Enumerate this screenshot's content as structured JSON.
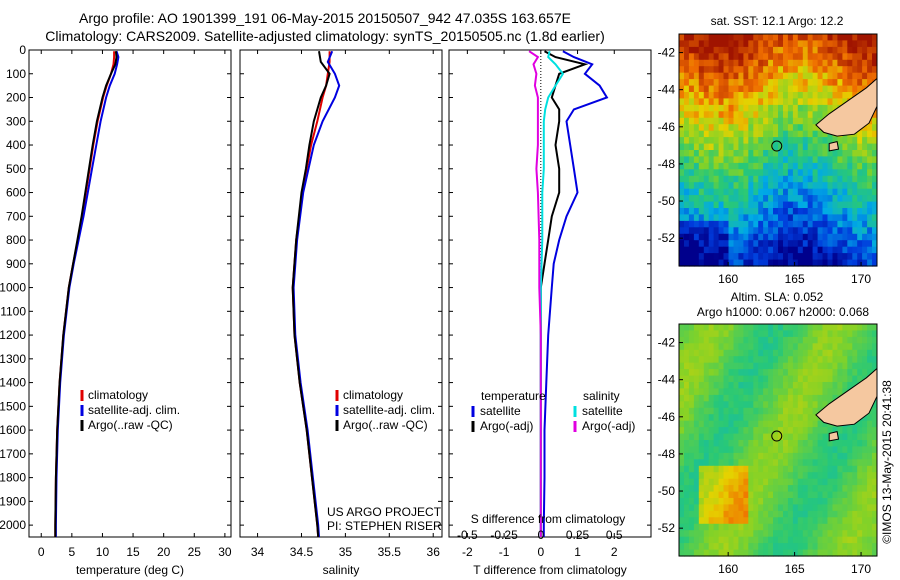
{
  "title_line1": "Argo profile: AO 1901399_191 06-May-2015 20150507_942 47.035S 163.657E",
  "title_line2": "Climatology: CARS2009. Satellite-adjusted climatology: synTS_20150505.nc (1.8d earlier)",
  "colors": {
    "climatology": "#e00000",
    "satellite": "#0000e0",
    "argo": "#000000",
    "salinity_sat": "#00e0e0",
    "salinity_argo": "#e000e0"
  },
  "chart_data": [
    {
      "type": "line",
      "panel": "temperature",
      "xlabel": "temperature (deg C)",
      "ylabel": "",
      "xlim": [
        -2,
        31
      ],
      "ylim": [
        2050,
        0
      ],
      "xticks": [
        0,
        5,
        10,
        15,
        20,
        25,
        30
      ],
      "yticks": [
        0,
        100,
        200,
        300,
        400,
        500,
        600,
        700,
        800,
        900,
        1000,
        1100,
        1200,
        1300,
        1400,
        1500,
        1600,
        1700,
        1800,
        1900,
        2000
      ],
      "legend": [
        "climatology",
        "satellite-adj. clim.",
        "Argo(..raw -QC)"
      ],
      "series": [
        {
          "name": "climatology",
          "color_key": "climatology",
          "depth": [
            5,
            30,
            60,
            100,
            150,
            200,
            300,
            400,
            500,
            600,
            700,
            800,
            900,
            1000,
            1200,
            1400,
            1600,
            1800,
            2000,
            2050
          ],
          "values": [
            11.9,
            11.9,
            11.8,
            11.4,
            10.7,
            10.1,
            9.2,
            8.5,
            7.9,
            7.3,
            6.7,
            6.0,
            5.2,
            4.5,
            3.6,
            3.0,
            2.6,
            2.4,
            2.3,
            2.3
          ]
        },
        {
          "name": "satellite-adj. clim.",
          "color_key": "satellite",
          "depth": [
            5,
            30,
            60,
            100,
            150,
            200,
            300,
            400,
            500,
            600,
            700,
            800,
            900,
            1000,
            1200,
            1400,
            1600,
            1800,
            2000,
            2050
          ],
          "values": [
            12.3,
            12.6,
            12.4,
            12.0,
            11.2,
            10.6,
            9.7,
            9.0,
            8.3,
            7.6,
            6.9,
            6.1,
            5.3,
            4.6,
            3.7,
            3.1,
            2.7,
            2.5,
            2.4,
            2.4
          ]
        },
        {
          "name": "Argo(..raw -QC)",
          "color_key": "argo",
          "depth": [
            5,
            30,
            60,
            100,
            150,
            200,
            300,
            400,
            500,
            600,
            700,
            800,
            900,
            1000,
            1200,
            1400,
            1600,
            1800,
            2000,
            2050
          ],
          "values": [
            12.2,
            12.3,
            12.1,
            11.4,
            10.6,
            10.0,
            9.1,
            8.4,
            7.8,
            7.2,
            6.6,
            5.9,
            5.2,
            4.5,
            3.6,
            3.0,
            2.6,
            2.4,
            2.3,
            2.3
          ]
        }
      ]
    },
    {
      "type": "line",
      "panel": "salinity",
      "xlabel": "salinity",
      "ylabel": "",
      "xlim": [
        33.8,
        36.1
      ],
      "ylim": [
        2050,
        0
      ],
      "xticks": [
        34,
        34.5,
        35,
        35.5,
        36
      ],
      "legend": [
        "climatology",
        "satellite-adj. clim.",
        "Argo(..raw -QC)"
      ],
      "annotation": [
        "US ARGO PROJECT",
        "PI: STEPHEN RISER"
      ],
      "series": [
        {
          "name": "climatology",
          "color_key": "climatology",
          "depth": [
            5,
            50,
            100,
            150,
            200,
            300,
            400,
            500,
            600,
            800,
            1000,
            1200,
            1400,
            1600,
            1800,
            2000,
            2050
          ],
          "values": [
            34.82,
            34.82,
            34.8,
            34.78,
            34.74,
            34.68,
            34.61,
            34.56,
            34.51,
            34.44,
            34.4,
            34.42,
            34.48,
            34.56,
            34.62,
            34.68,
            34.69
          ]
        },
        {
          "name": "satellite-adj. clim.",
          "color_key": "satellite",
          "depth": [
            5,
            50,
            100,
            150,
            200,
            300,
            400,
            500,
            600,
            800,
            1000,
            1200,
            1400,
            1600,
            1800,
            2000,
            2050
          ],
          "values": [
            34.85,
            34.8,
            34.88,
            34.93,
            34.88,
            34.74,
            34.64,
            34.58,
            34.52,
            34.45,
            34.41,
            34.43,
            34.49,
            34.57,
            34.63,
            34.69,
            34.7
          ]
        },
        {
          "name": "Argo(..raw -QC)",
          "color_key": "argo",
          "depth": [
            5,
            50,
            100,
            150,
            200,
            300,
            400,
            500,
            600,
            800,
            1000,
            1200,
            1400,
            1600,
            1800,
            2000,
            2050
          ],
          "values": [
            34.7,
            34.72,
            34.82,
            34.78,
            34.72,
            34.64,
            34.59,
            34.55,
            34.5,
            34.44,
            34.4,
            34.42,
            34.48,
            34.56,
            34.62,
            34.68,
            34.69
          ]
        }
      ]
    },
    {
      "type": "line",
      "panel": "difference",
      "xlabel": "T difference from climatology",
      "xlabel2": "S difference from climatology",
      "xlim": [
        -2.5,
        3.0
      ],
      "ylim": [
        2050,
        0
      ],
      "xticks": [
        -2,
        -1,
        0,
        1,
        2
      ],
      "xticks_s": [
        -0.5,
        -0.25,
        0,
        0.25,
        0.5
      ],
      "legend_left_title": "temperature",
      "legend_right_title": "salinity",
      "legend_left": [
        "satellite",
        "Argo(-adj)"
      ],
      "legend_right": [
        "satellite",
        "Argo(-adj)"
      ],
      "series": [
        {
          "name": "T satellite",
          "color_key": "satellite",
          "depth": [
            5,
            30,
            60,
            100,
            150,
            200,
            250,
            300,
            400,
            500,
            600,
            700,
            800,
            900,
            1000,
            1200,
            1400,
            1600,
            1800,
            2000,
            2050
          ],
          "values": [
            0.6,
            0.9,
            1.4,
            1.2,
            1.6,
            1.8,
            0.9,
            0.7,
            0.8,
            0.9,
            1.0,
            0.7,
            0.5,
            0.35,
            0.3,
            0.2,
            0.15,
            0.1,
            0.1,
            0.08,
            0.08
          ]
        },
        {
          "name": "T Argo(-adj)",
          "color_key": "argo",
          "depth": [
            5,
            30,
            60,
            100,
            150,
            200,
            250,
            300,
            400,
            500,
            600,
            700,
            800,
            900,
            1000,
            1200,
            1400,
            1600,
            1800,
            2000,
            2050
          ],
          "values": [
            0.1,
            0.4,
            1.2,
            0.5,
            0.4,
            0.3,
            0.5,
            0.5,
            0.4,
            0.5,
            0.5,
            0.3,
            0.2,
            0.1,
            0.0,
            0.0,
            0.0,
            0.0,
            0.0,
            0.0,
            0.0
          ]
        },
        {
          "name": "S satellite",
          "color_key": "salinity_sat",
          "depth": [
            5,
            30,
            60,
            100,
            150,
            200,
            250,
            300,
            400,
            500,
            600,
            800,
            1000,
            1200,
            1400,
            1600,
            1800,
            2000,
            2050
          ],
          "values": [
            0.06,
            0.05,
            0.1,
            0.15,
            0.1,
            0.05,
            0.03,
            0.02,
            0.02,
            0.02,
            0.01,
            0.01,
            0.0,
            0.0,
            0.0,
            0.0,
            0.0,
            0.0,
            0.0
          ]
        },
        {
          "name": "S Argo(-adj)",
          "color_key": "salinity_argo",
          "depth": [
            5,
            30,
            60,
            100,
            150,
            200,
            250,
            300,
            400,
            500,
            600,
            800,
            1000,
            1200,
            1400,
            1600,
            1800,
            2000,
            2050
          ],
          "values": [
            -0.08,
            -0.02,
            -0.05,
            -0.03,
            -0.04,
            -0.02,
            -0.02,
            -0.02,
            -0.02,
            -0.03,
            -0.02,
            -0.01,
            -0.01,
            0.0,
            0.0,
            0.0,
            0.0,
            0.0,
            0.0
          ]
        }
      ]
    },
    {
      "type": "heatmap",
      "panel": "sst_map",
      "title": "sat. SST: 12.1 Argo: 12.2",
      "xticks": [
        160,
        165,
        170
      ],
      "yticks": [
        -42,
        -44,
        -46,
        -48,
        -50,
        -52
      ],
      "xlim": [
        156.3,
        171.2
      ],
      "ylim": [
        -53.5,
        -41
      ]
    },
    {
      "type": "heatmap",
      "panel": "sla_map",
      "title_line1": "Altim. SLA: 0.052",
      "title_line2": "Argo h1000: 0.067 h2000: 0.068",
      "xticks": [
        160,
        165,
        170
      ],
      "yticks": [
        -42,
        -44,
        -46,
        -48,
        -50,
        -52
      ],
      "xlim": [
        156.3,
        171.2
      ],
      "ylim": [
        -53.5,
        -41
      ]
    }
  ],
  "float_position": {
    "lon": 163.657,
    "lat": -47.035
  },
  "credit": "©IMOS 13-May-2015 20:41:38"
}
